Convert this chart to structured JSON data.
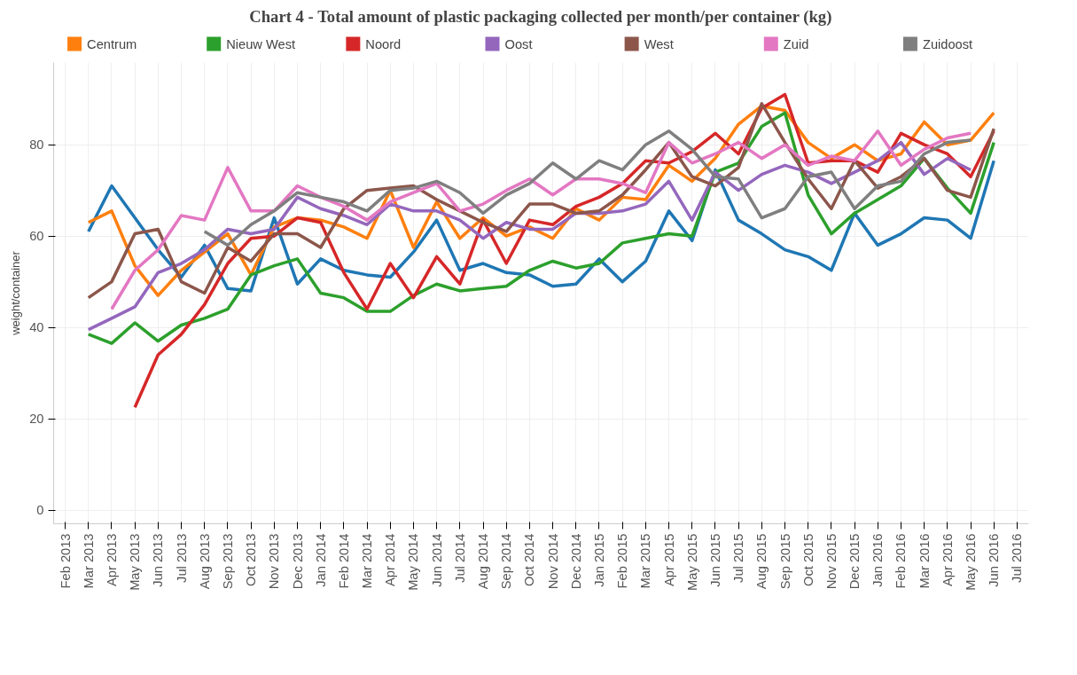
{
  "chart_data": {
    "type": "line",
    "title": "Chart 4 - Total amount of plastic packaging collected per month/per container (kg)",
    "ylabel": "weight/container",
    "categories": [
      "Feb 2013",
      "Mar 2013",
      "Apr 2013",
      "May 2013",
      "Jun 2013",
      "Jul 2013",
      "Aug 2013",
      "Sep 2013",
      "Oct 2013",
      "Nov 2013",
      "Dec 2013",
      "Jan 2014",
      "Feb 2014",
      "Mar 2014",
      "Apr 2014",
      "May 2014",
      "Jun 2014",
      "Jul 2014",
      "Aug 2014",
      "Sep 2014",
      "Oct 2014",
      "Nov 2014",
      "Dec 2014",
      "Jan 2015",
      "Feb 2015",
      "Mar 2015",
      "Apr 2015",
      "May 2015",
      "Jun 2015",
      "Jul 2015",
      "Aug 2015",
      "Sep 2015",
      "Oct 2015",
      "Nov 2015",
      "Dec 2015",
      "Jan 2016",
      "Feb 2016",
      "Mar 2016",
      "Apr 2016",
      "May 2016",
      "Jun 2016",
      "Jul 2016"
    ],
    "series": [
      {
        "color": "#1f77b4",
        "values": [
          null,
          61,
          71,
          64,
          57,
          51,
          58,
          48.5,
          48,
          64,
          49.5,
          55,
          52.5,
          51.5,
          51,
          56.5,
          63.5,
          52.5,
          54,
          52,
          51.5,
          49,
          49.5,
          55,
          50,
          54.5,
          65.5,
          59,
          74.5,
          63.5,
          60.5,
          57,
          55.5,
          52.5,
          65,
          58,
          60.5,
          64,
          63.5,
          59.5,
          76.5,
          null
        ]
      },
      {
        "name": "Centrum",
        "color": "#ff7f0e",
        "values": [
          null,
          63,
          65.5,
          53.5,
          47,
          52.5,
          56.5,
          60.5,
          51.5,
          62,
          64,
          63.5,
          62,
          59.5,
          70,
          57.5,
          67.5,
          59.5,
          64,
          60,
          62,
          59.5,
          66,
          63.5,
          68.5,
          68,
          75.5,
          72,
          77,
          84.5,
          88.5,
          87.5,
          80.5,
          77,
          80,
          76.5,
          78,
          85,
          80,
          81,
          87,
          null
        ]
      },
      {
        "name": "Nieuw West",
        "color": "#2ca02c",
        "values": [
          null,
          38.5,
          36.5,
          41,
          37,
          40.5,
          42,
          44,
          51.5,
          53.5,
          55,
          47.5,
          46.5,
          43.5,
          43.5,
          47,
          49.5,
          48,
          48.5,
          49,
          52.5,
          54.5,
          53,
          54,
          58.5,
          59.5,
          60.5,
          60,
          74,
          76,
          84,
          87,
          69,
          60.5,
          65,
          68,
          71,
          77,
          70.5,
          65,
          80.5,
          null
        ]
      },
      {
        "name": "Noord",
        "color": "#d62728",
        "values": [
          null,
          null,
          null,
          22.5,
          34,
          38.5,
          45,
          54,
          59.5,
          60,
          64,
          63,
          52,
          44,
          54,
          46.5,
          55.5,
          49.5,
          63.5,
          54,
          63.5,
          62.5,
          66.5,
          68.5,
          71.5,
          76.5,
          76,
          78.5,
          82.5,
          78,
          88,
          91,
          76,
          76.5,
          76.5,
          74,
          82.5,
          80,
          78,
          73,
          83,
          null
        ]
      },
      {
        "name": "Oost",
        "color": "#9467bd",
        "values": [
          null,
          39.5,
          42,
          44.5,
          52,
          54,
          57,
          61.5,
          60.5,
          61.5,
          68.5,
          66,
          64.5,
          62.5,
          67,
          65.5,
          65.5,
          63.5,
          59.5,
          63,
          61.5,
          61.5,
          65,
          65,
          65.5,
          67,
          72,
          63.5,
          74,
          70,
          73.5,
          75.5,
          74,
          71.5,
          74,
          76.5,
          80.5,
          73.5,
          77,
          74.5,
          null,
          null
        ]
      },
      {
        "name": "West",
        "color": "#8c564b",
        "values": [
          null,
          46.5,
          50,
          60.5,
          61.5,
          50,
          47.5,
          57.5,
          54.5,
          60.5,
          60.5,
          57.5,
          66,
          70,
          70.5,
          71,
          68,
          65.5,
          63,
          61,
          67,
          67,
          65,
          65.5,
          69,
          74.5,
          80.5,
          73,
          71,
          75,
          89,
          80.5,
          72.5,
          66,
          76.5,
          70.5,
          73,
          77,
          70,
          68.5,
          83.5,
          null
        ]
      },
      {
        "name": "Zuid",
        "color": "#e377c2",
        "values": [
          null,
          null,
          44,
          52.5,
          57,
          64.5,
          63.5,
          75,
          65.5,
          65.5,
          71,
          68.5,
          66.5,
          63.5,
          67.5,
          69.5,
          71.5,
          65.5,
          67,
          70,
          72.5,
          69,
          72.5,
          72.5,
          71.5,
          69.5,
          80.5,
          76,
          78,
          80.5,
          77,
          80,
          75.5,
          77.5,
          76.5,
          83,
          75.5,
          79,
          81.5,
          82.5,
          null,
          null
        ]
      },
      {
        "name": "Zuidoost",
        "color": "#7f7f7f",
        "values": [
          null,
          null,
          null,
          null,
          null,
          null,
          61,
          58,
          62.5,
          65.5,
          69.5,
          68.5,
          67.5,
          65.5,
          70,
          70.5,
          72,
          69.5,
          65,
          69,
          71.5,
          76,
          72.5,
          76.5,
          74.5,
          80,
          83,
          79,
          73,
          72.5,
          64,
          66,
          73,
          74,
          66,
          71,
          72,
          78,
          80.5,
          81,
          null,
          null
        ]
      }
    ],
    "ylim": [
      -3,
      98
    ],
    "yticks": [
      0,
      20,
      40,
      60,
      80
    ],
    "grid": true,
    "legend": "top",
    "marker": "none",
    "line_style": "solid"
  }
}
